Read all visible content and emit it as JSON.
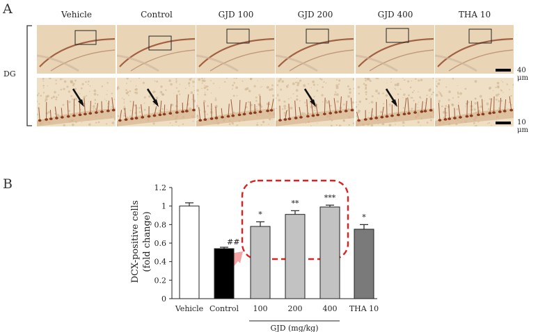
{
  "panel_a": {
    "letter": "A",
    "region_label": "DG",
    "columns": [
      "Vehicle",
      "Control",
      "GJD 100",
      "GJD 200",
      "GJD 400",
      "THA 10"
    ],
    "scale_bars": [
      "40 μm",
      "10 μm"
    ],
    "colors": {
      "tissue": "#e9d5b6",
      "stain": "#8b3a1d",
      "arrow": "#111111"
    }
  },
  "panel_b": {
    "letter": "B"
  },
  "chart_data": {
    "type": "bar",
    "title": "",
    "ylabel_lines": [
      "DCX-positive cells",
      "(fold change)"
    ],
    "ylim": [
      0,
      1.2
    ],
    "yticks": [
      "0",
      "0.2",
      "0.4",
      "0.6",
      "0.8",
      "1",
      "1.2"
    ],
    "ytick_values": [
      0,
      0.2,
      0.4,
      0.6,
      0.8,
      1.0,
      1.2
    ],
    "categories": [
      "Vehicle",
      "Control",
      "100",
      "200",
      "400",
      "THA 10"
    ],
    "values": [
      1.0,
      0.54,
      0.78,
      0.91,
      0.99,
      0.75
    ],
    "errors": [
      0.035,
      0.015,
      0.05,
      0.04,
      0.02,
      0.05
    ],
    "bar_colors": [
      "#ffffff",
      "#000000",
      "#c2c2c2",
      "#c2c2c2",
      "#c2c2c2",
      "#7a7a7a"
    ],
    "significance": [
      "",
      "##",
      "*",
      "**",
      "***",
      "*"
    ],
    "group_label": "GJD (mg/kg)",
    "highlight_color": "#e02020",
    "arrow_color": "#f3a3a3"
  }
}
